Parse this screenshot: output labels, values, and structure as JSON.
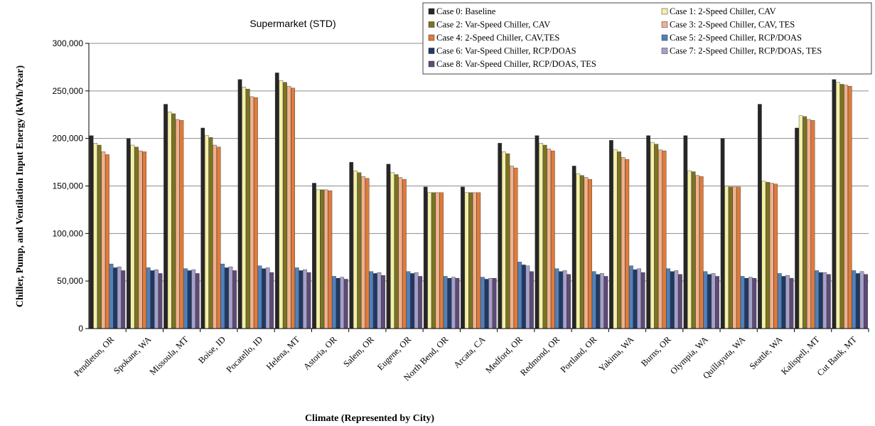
{
  "chart_data": {
    "type": "bar",
    "title": "Supermarket (STD)",
    "xlabel": "Climate (Represented by City)",
    "ylabel": "Chiller, Pump, and Ventilation Input Energy (kWh/Year)",
    "ylim": [
      0,
      300000
    ],
    "yticks": [
      0,
      50000,
      100000,
      150000,
      200000,
      250000,
      300000
    ],
    "ytick_labels": [
      "0",
      "50,000",
      "100,000",
      "150,000",
      "200,000",
      "250,000",
      "300,000"
    ],
    "grid": true,
    "legend_position": "top-right",
    "categories": [
      "Pendleton, OR",
      "Spokane, WA",
      "Missoula, MT",
      "Boise, ID",
      "Pocatello, ID",
      "Helena, MT",
      "Astoria, OR",
      "Salem, OR",
      "Eugene, OR",
      "North Bend, OR",
      "Arcata, CA",
      "Medford, OR",
      "Redmond, OR",
      "Portland, OR",
      "Yakima, WA",
      "Burns, OR",
      "Olympia, WA",
      "Quillayuta, WA",
      "Seattle, WA",
      "Kalispell, MT",
      "Cut Bank, MT"
    ],
    "series": [
      {
        "name": "Case 0: Baseline",
        "color": "#262626",
        "values": [
          203000,
          200000,
          236000,
          211000,
          262000,
          269000,
          153000,
          175000,
          173000,
          149000,
          149000,
          195000,
          203000,
          171000,
          198000,
          203000,
          203000,
          200000,
          236000,
          211000,
          262000
        ]
      },
      {
        "name": "Case 1: 2-Speed Chiller, CAV",
        "color": "#f5f0a8",
        "values": [
          195000,
          193000,
          228000,
          203000,
          254000,
          261000,
          146000,
          166000,
          164000,
          143000,
          143000,
          186000,
          195000,
          163000,
          188000,
          196000,
          166000,
          150000,
          155000,
          224000,
          259000
        ]
      },
      {
        "name": "Case 2: Var-Speed Chiller, CAV",
        "color": "#7a7420",
        "values": [
          193000,
          191000,
          226000,
          201000,
          252000,
          259000,
          146000,
          164000,
          162000,
          143000,
          143000,
          184000,
          193000,
          161000,
          186000,
          194000,
          165000,
          149000,
          154000,
          223000,
          257000
        ]
      },
      {
        "name": "Case 3: 2-Speed Chiller, CAV, TES",
        "color": "#f2b08c",
        "values": [
          186000,
          187000,
          220000,
          193000,
          244000,
          255000,
          146000,
          160000,
          159000,
          143000,
          143000,
          171000,
          189000,
          159000,
          180000,
          188000,
          161000,
          149000,
          153000,
          220000,
          256000
        ]
      },
      {
        "name": "Case 4: 2-Speed Chiller, CAV,TES",
        "color": "#e07b3a",
        "values": [
          183000,
          186000,
          219000,
          191000,
          243000,
          253000,
          145000,
          158000,
          157000,
          143000,
          143000,
          169000,
          187000,
          157000,
          178000,
          187000,
          160000,
          149000,
          152000,
          219000,
          255000
        ]
      },
      {
        "name": "Case 5: 2-Speed Chiller, RCP/DOAS",
        "color": "#4f81bd",
        "values": [
          68000,
          64000,
          63000,
          68000,
          66000,
          64000,
          55000,
          60000,
          60000,
          55000,
          54000,
          70000,
          63000,
          60000,
          66000,
          63000,
          60000,
          55000,
          58000,
          61000,
          61000
        ]
      },
      {
        "name": "Case 6: Var-Speed Chiller, RCP/DOAS",
        "color": "#1f3864",
        "values": [
          64000,
          61000,
          61000,
          64000,
          63000,
          61000,
          53000,
          58000,
          58000,
          53000,
          52000,
          67000,
          60000,
          57000,
          62000,
          60000,
          57000,
          53000,
          55000,
          59000,
          58000
        ]
      },
      {
        "name": "Case 7: 2-Speed Chiller, RCP/DOAS, TES",
        "color": "#a6a1c9",
        "values": [
          65000,
          62000,
          62000,
          65000,
          64000,
          62000,
          54000,
          59000,
          59000,
          54000,
          53000,
          66000,
          61000,
          58000,
          63000,
          61000,
          58000,
          54000,
          56000,
          59000,
          60000
        ]
      },
      {
        "name": "Case 8: Var-Speed Chiller, RCP/DOAS, TES",
        "color": "#5e4a78",
        "values": [
          61000,
          58000,
          58000,
          61000,
          59000,
          59000,
          52000,
          56000,
          55000,
          53000,
          53000,
          60000,
          57000,
          55000,
          59000,
          57000,
          55000,
          53000,
          53000,
          57000,
          57000
        ]
      }
    ]
  }
}
